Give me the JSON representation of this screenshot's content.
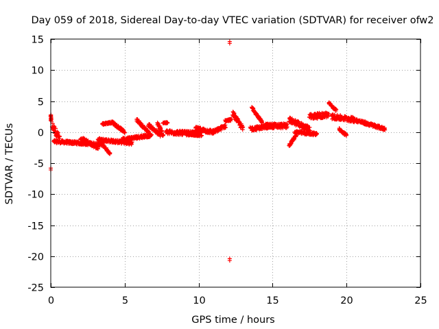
{
  "chart_data": {
    "type": "scatter",
    "title": "Day 059 of 2018, Sidereal Day-to-day VTEC variation (SDTVAR) for receiver ofw2",
    "xlabel": "GPS time / hours",
    "ylabel": "SDTVAR / TECUs",
    "xlim": [
      0,
      25
    ],
    "ylim": [
      -25,
      15
    ],
    "xticks": [
      0,
      5,
      10,
      15,
      20,
      25
    ],
    "yticks": [
      -25,
      -20,
      -15,
      -10,
      -5,
      0,
      5,
      10,
      15
    ],
    "grid": true,
    "marker": "+",
    "color": "#ff0000",
    "segments": [
      {
        "x0": 0.0,
        "x1": 0.02,
        "y_start": 2.8,
        "y_end": 1.8,
        "spread": 0.15
      },
      {
        "x0": 0.1,
        "x1": 0.6,
        "y_start": 1.0,
        "y_end": -1.0,
        "spread": 1.2
      },
      {
        "x0": 0.2,
        "x1": 3.5,
        "y_start": -1.5,
        "y_end": -2.0,
        "spread": 0.5
      },
      {
        "x0": 2.0,
        "x1": 3.2,
        "y_start": -1.0,
        "y_end": -2.5,
        "spread": 0.6
      },
      {
        "x0": 3.2,
        "x1": 5.5,
        "y_start": -1.2,
        "y_end": -1.8,
        "spread": 0.5
      },
      {
        "x0": 3.5,
        "x1": 4.0,
        "y_start": -2.0,
        "y_end": -3.5,
        "spread": 0.3
      },
      {
        "x0": 3.5,
        "x1": 4.2,
        "y_start": 1.3,
        "y_end": 1.6,
        "spread": 0.3
      },
      {
        "x0": 4.2,
        "x1": 5.0,
        "y_start": 1.5,
        "y_end": 0.0,
        "spread": 0.4
      },
      {
        "x0": 4.8,
        "x1": 6.8,
        "y_start": -1.2,
        "y_end": -0.5,
        "spread": 0.5
      },
      {
        "x0": 5.8,
        "x1": 6.6,
        "y_start": 2.0,
        "y_end": 0.0,
        "spread": 0.4
      },
      {
        "x0": 6.6,
        "x1": 7.4,
        "y_start": 1.2,
        "y_end": -0.5,
        "spread": 0.5
      },
      {
        "x0": 7.2,
        "x1": 7.6,
        "y_start": 1.5,
        "y_end": -0.5,
        "spread": 0.6
      },
      {
        "x0": 7.6,
        "x1": 7.9,
        "y_start": 1.5,
        "y_end": 1.5,
        "spread": 0.2
      },
      {
        "x0": 7.8,
        "x1": 10.2,
        "y_start": 0.0,
        "y_end": -0.3,
        "spread": 0.7
      },
      {
        "x0": 9.2,
        "x1": 10.0,
        "y_start": -0.2,
        "y_end": -0.5,
        "spread": 0.4
      },
      {
        "x0": 9.8,
        "x1": 11.0,
        "y_start": 0.5,
        "y_end": 0.0,
        "spread": 0.7
      },
      {
        "x0": 11.0,
        "x1": 11.8,
        "y_start": 0.0,
        "y_end": 1.0,
        "spread": 0.6
      },
      {
        "x0": 11.8,
        "x1": 12.2,
        "y_start": 1.8,
        "y_end": 2.0,
        "spread": 0.3
      },
      {
        "x0": 12.3,
        "x1": 13.0,
        "y_start": 3.0,
        "y_end": 0.5,
        "spread": 0.8
      },
      {
        "x0": 13.6,
        "x1": 14.3,
        "y_start": 4.0,
        "y_end": 1.5,
        "spread": 0.4
      },
      {
        "x0": 13.5,
        "x1": 15.0,
        "y_start": 0.5,
        "y_end": 1.0,
        "spread": 0.6
      },
      {
        "x0": 14.5,
        "x1": 16.0,
        "y_start": 1.0,
        "y_end": 1.0,
        "spread": 0.8
      },
      {
        "x0": 16.1,
        "x1": 16.6,
        "y_start": -2.2,
        "y_end": -0.5,
        "spread": 0.4
      },
      {
        "x0": 16.1,
        "x1": 17.5,
        "y_start": 2.0,
        "y_end": 0.5,
        "spread": 0.8
      },
      {
        "x0": 16.5,
        "x1": 18.0,
        "y_start": 0.0,
        "y_end": -0.3,
        "spread": 0.5
      },
      {
        "x0": 17.5,
        "x1": 18.8,
        "y_start": 2.5,
        "y_end": 2.8,
        "spread": 0.9
      },
      {
        "x0": 18.8,
        "x1": 19.3,
        "y_start": 4.7,
        "y_end": 3.5,
        "spread": 0.3
      },
      {
        "x0": 19.0,
        "x1": 20.5,
        "y_start": 2.5,
        "y_end": 2.0,
        "spread": 0.8
      },
      {
        "x0": 19.5,
        "x1": 20.0,
        "y_start": 0.5,
        "y_end": -0.5,
        "spread": 0.4
      },
      {
        "x0": 20.5,
        "x1": 22.6,
        "y_start": 2.0,
        "y_end": 0.5,
        "spread": 0.5
      }
    ],
    "outliers": [
      {
        "x": 0.0,
        "y": -6.1
      },
      {
        "x": 0.0,
        "y": -5.8
      },
      {
        "x": 12.1,
        "y": 14.6
      },
      {
        "x": 12.1,
        "y": 14.3
      },
      {
        "x": 12.1,
        "y": -20.4
      },
      {
        "x": 12.1,
        "y": -20.7
      }
    ]
  }
}
